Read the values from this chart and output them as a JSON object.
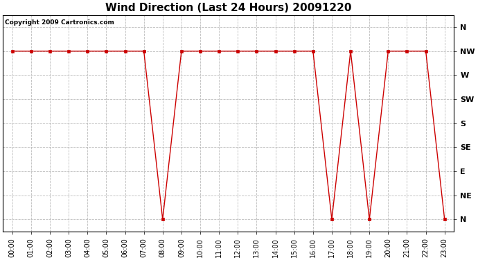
{
  "title": "Wind Direction (Last 24 Hours) 20091220",
  "copyright_text": "Copyright 2009 Cartronics.com",
  "background_color": "#ffffff",
  "plot_bg_color": "#ffffff",
  "grid_color": "#bbbbbb",
  "line_color": "#cc0000",
  "marker_color": "#cc0000",
  "ytick_labels": [
    "N",
    "NW",
    "W",
    "SW",
    "S",
    "SE",
    "E",
    "NE",
    "N"
  ],
  "ytick_values": [
    8,
    7,
    6,
    5,
    4,
    3,
    2,
    1,
    0
  ],
  "hours": [
    0,
    1,
    2,
    3,
    4,
    5,
    6,
    7,
    8,
    9,
    10,
    11,
    12,
    13,
    14,
    15,
    16,
    17,
    18,
    19,
    20,
    21,
    22,
    23
  ],
  "wind_values": [
    7,
    7,
    7,
    7,
    7,
    7,
    7,
    7,
    0,
    7,
    7,
    7,
    7,
    7,
    7,
    7,
    7,
    0,
    7,
    0,
    7,
    7,
    7,
    0
  ],
  "xtick_labels": [
    "00:00",
    "01:00",
    "02:00",
    "03:00",
    "04:00",
    "05:00",
    "06:00",
    "07:00",
    "08:00",
    "09:00",
    "10:00",
    "11:00",
    "12:00",
    "13:00",
    "14:00",
    "15:00",
    "16:00",
    "17:00",
    "18:00",
    "19:00",
    "20:00",
    "21:00",
    "22:00",
    "23:00"
  ],
  "title_fontsize": 11,
  "tick_fontsize": 7,
  "copyright_fontsize": 6.5,
  "ylabel_fontsize": 8,
  "figwidth": 6.9,
  "figheight": 3.75,
  "dpi": 100
}
